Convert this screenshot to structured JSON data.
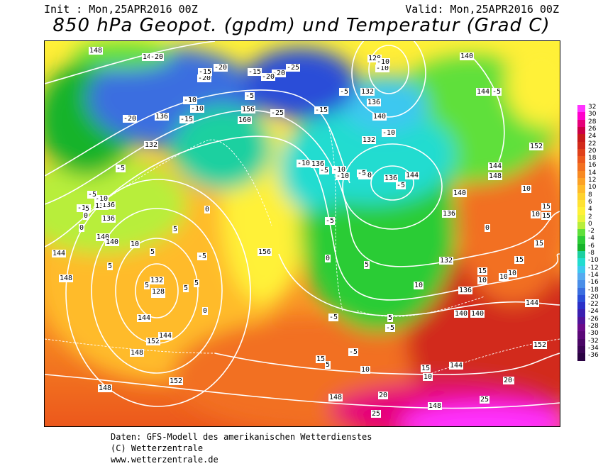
{
  "header": {
    "init": "Init : Mon,25APR2016 00Z",
    "valid": "Valid: Mon,25APR2016 00Z",
    "title": "850 hPa Geopot. (gpdm) und Temperatur (Grad C)"
  },
  "legend": {
    "values": [
      "32",
      "30",
      "28",
      "26",
      "24",
      "22",
      "20",
      "18",
      "16",
      "14",
      "12",
      "10",
      "8",
      "6",
      "4",
      "2",
      "0",
      "-2",
      "-4",
      "-6",
      "-8",
      "-10",
      "-12",
      "-14",
      "-16",
      "-18",
      "-20",
      "-22",
      "-24",
      "-26",
      "-28",
      "-30",
      "-32",
      "-34",
      "-36"
    ],
    "colors": [
      "#ff33ff",
      "#ff00cc",
      "#e6007a",
      "#cc0044",
      "#c81a1a",
      "#d22a1a",
      "#e0401a",
      "#ec581c",
      "#f27020",
      "#f88a22",
      "#fca226",
      "#ffbb2a",
      "#ffd22e",
      "#ffe233",
      "#fff138",
      "#e8f43a",
      "#b8ee3a",
      "#5fe03a",
      "#2ccc36",
      "#16b32a",
      "#1cd0a0",
      "#22dcd0",
      "#3ec8f0",
      "#56aaf0",
      "#4a8ee8",
      "#3a6ee0",
      "#2a4ed8",
      "#2a30c8",
      "#3a1eb0",
      "#50129a",
      "#6a0a8a",
      "#5a0878",
      "#4a0666",
      "#3a0454",
      "#2a0242"
    ]
  },
  "isohypse_labels": [
    "148",
    "140",
    "136",
    "132",
    "128",
    "144",
    "152",
    "156",
    "160",
    "136",
    "132",
    "140",
    "144",
    "136",
    "140",
    "128",
    "132",
    "136",
    "148",
    "144",
    "140",
    "136",
    "132",
    "128",
    "132",
    "136",
    "140",
    "144",
    "148",
    "152",
    "156",
    "140",
    "144",
    "136",
    "152",
    "144",
    "148",
    "148",
    "132",
    "136",
    "140",
    "140",
    "144",
    "140",
    "148",
    "152",
    "148",
    "144"
  ],
  "isotherm_labels": [
    "-20",
    "-15",
    "-20",
    "-15",
    "-20",
    "-25",
    "-25",
    "-20",
    "-20",
    "-10",
    "-10",
    "-15",
    "-5",
    "-5",
    "-20",
    "-10",
    "-10",
    "-5",
    "-10",
    "-15",
    "-5",
    "-5",
    "-10",
    "-10",
    "-10",
    "-5",
    "0",
    "-5",
    "0",
    "5",
    "5",
    "0",
    "5",
    "5",
    "-10",
    "-5",
    "-5",
    "-10",
    "0",
    "0",
    "5",
    "5",
    "5",
    "10",
    "10",
    "10",
    "15",
    "15",
    "10",
    "15",
    "10",
    "20",
    "25",
    "25",
    "20",
    "10",
    "15",
    "10",
    "15",
    "5",
    "5",
    "-5",
    "-5",
    "0",
    "-5",
    "-5",
    "5",
    "15",
    "10",
    "15",
    "10",
    "20"
  ],
  "footer": {
    "line1": "Daten: GFS-Modell des amerikanischen Wetterdienstes",
    "line2": "(C) Wetterzentrale",
    "line3": "www.wetterzentrale.de"
  }
}
